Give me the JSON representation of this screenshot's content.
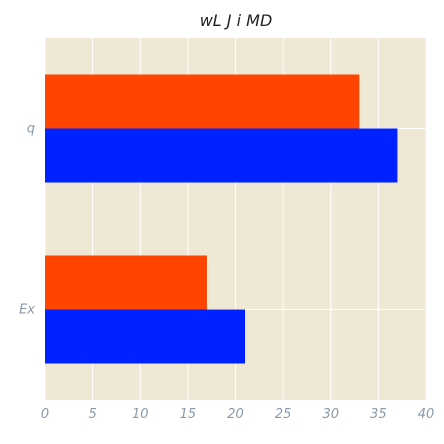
{
  "chart_data": {
    "type": "bar",
    "orientation": "horizontal",
    "title": "wL J i MD",
    "xlabel": "",
    "ylabel": "",
    "categories": [
      "q",
      "Ex"
    ],
    "series": [
      {
        "values": [
          33,
          17
        ],
        "color": "#ff4500"
      },
      {
        "values": [
          37,
          21
        ],
        "color": "#0022ff"
      }
    ],
    "xlim": [
      0,
      40
    ],
    "x_ticks": [
      "0",
      "5",
      "10",
      "15",
      "20",
      "25",
      "30",
      "35",
      "40"
    ],
    "grid": true,
    "legend": "none",
    "background_color": "#eee8d5",
    "grid_color": "#ffffff"
  }
}
